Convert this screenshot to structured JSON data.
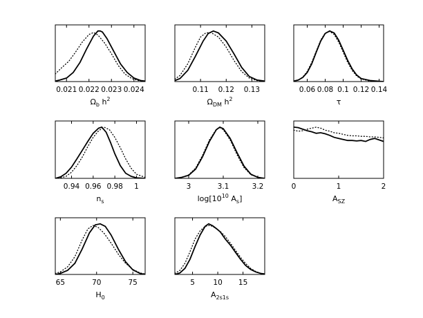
{
  "figure_colors": {
    "solid": "#000000",
    "dotted": "#000000",
    "frame": "#000000"
  },
  "chart_data": [
    {
      "type": "line",
      "xlabel": {
        "base": "Ω",
        "sub": "b",
        "rest": " h",
        "sup": "2"
      },
      "xlim": [
        0.0205,
        0.0245
      ],
      "ylim": [
        0,
        1.12
      ],
      "xticks": [
        {
          "value": 0.021,
          "label": "0.021"
        },
        {
          "value": 0.022,
          "label": "0.022"
        },
        {
          "value": 0.023,
          "label": "0.023"
        },
        {
          "value": 0.024,
          "label": "0.024"
        }
      ],
      "series": [
        {
          "style": "solid",
          "x": [
            0.0205,
            0.0207,
            0.021,
            0.0213,
            0.0216,
            0.0219,
            0.0222,
            0.0224,
            0.0225,
            0.0226,
            0.0228,
            0.0231,
            0.0234,
            0.0237,
            0.024,
            0.0243,
            0.0245
          ],
          "y": [
            0.01,
            0.03,
            0.07,
            0.18,
            0.38,
            0.65,
            0.9,
            1.0,
            1.0,
            0.98,
            0.85,
            0.6,
            0.35,
            0.18,
            0.07,
            0.02,
            0.01
          ]
        },
        {
          "style": "dotted",
          "x": [
            0.0205,
            0.0208,
            0.0211,
            0.0214,
            0.0217,
            0.022,
            0.0222,
            0.0224,
            0.0227,
            0.023,
            0.0233,
            0.0236,
            0.0239,
            0.0242,
            0.0245
          ],
          "y": [
            0.15,
            0.28,
            0.4,
            0.58,
            0.78,
            0.93,
            0.97,
            0.92,
            0.76,
            0.55,
            0.32,
            0.15,
            0.06,
            0.02,
            0.01
          ]
        }
      ]
    },
    {
      "type": "line",
      "xlabel": {
        "base": "Ω",
        "sub": "DM",
        "rest": " h",
        "sup": "2"
      },
      "xlim": [
        0.1,
        0.135
      ],
      "ylim": [
        0,
        1.12
      ],
      "xticks": [
        {
          "value": 0.11,
          "label": "0.11"
        },
        {
          "value": 0.12,
          "label": "0.12"
        },
        {
          "value": 0.13,
          "label": "0.13"
        }
      ],
      "series": [
        {
          "style": "solid",
          "x": [
            0.1,
            0.102,
            0.105,
            0.108,
            0.111,
            0.113,
            0.115,
            0.117,
            0.12,
            0.123,
            0.126,
            0.129,
            0.132,
            0.135
          ],
          "y": [
            0.02,
            0.06,
            0.22,
            0.5,
            0.8,
            0.95,
            1.0,
            0.96,
            0.8,
            0.55,
            0.28,
            0.1,
            0.03,
            0.01
          ]
        },
        {
          "style": "dotted",
          "x": [
            0.1,
            0.102,
            0.105,
            0.108,
            0.11,
            0.112,
            0.114,
            0.117,
            0.12,
            0.123,
            0.126,
            0.129,
            0.132,
            0.135
          ],
          "y": [
            0.05,
            0.12,
            0.35,
            0.68,
            0.88,
            0.96,
            0.97,
            0.88,
            0.68,
            0.42,
            0.2,
            0.07,
            0.02,
            0.01
          ]
        }
      ]
    },
    {
      "type": "line",
      "xlabel": {
        "base": "τ",
        "sub": "",
        "rest": "",
        "sup": ""
      },
      "xlim": [
        0.045,
        0.145
      ],
      "ylim": [
        0,
        1.12
      ],
      "xticks": [
        {
          "value": 0.06,
          "label": "0.06"
        },
        {
          "value": 0.08,
          "label": "0.08"
        },
        {
          "value": 0.1,
          "label": "0.1"
        },
        {
          "value": 0.12,
          "label": "0.12"
        },
        {
          "value": 0.14,
          "label": "0.14"
        }
      ],
      "series": [
        {
          "style": "solid",
          "x": [
            0.045,
            0.05,
            0.055,
            0.06,
            0.065,
            0.07,
            0.075,
            0.08,
            0.085,
            0.09,
            0.095,
            0.1,
            0.105,
            0.11,
            0.115,
            0.12,
            0.13,
            0.145
          ],
          "y": [
            0.01,
            0.03,
            0.08,
            0.18,
            0.35,
            0.58,
            0.8,
            0.95,
            1.0,
            0.96,
            0.82,
            0.62,
            0.42,
            0.25,
            0.13,
            0.06,
            0.02,
            0.0
          ]
        },
        {
          "style": "dotted",
          "x": [
            0.045,
            0.05,
            0.055,
            0.06,
            0.065,
            0.07,
            0.075,
            0.08,
            0.085,
            0.09,
            0.095,
            0.1,
            0.105,
            0.11,
            0.115,
            0.12,
            0.13,
            0.145
          ],
          "y": [
            0.01,
            0.03,
            0.09,
            0.2,
            0.38,
            0.6,
            0.82,
            0.96,
            0.99,
            0.93,
            0.78,
            0.58,
            0.38,
            0.22,
            0.11,
            0.05,
            0.01,
            0.0
          ]
        }
      ]
    },
    {
      "type": "line",
      "xlabel": {
        "base": "n",
        "sub": "s",
        "rest": "",
        "sup": ""
      },
      "xlim": [
        0.925,
        1.008
      ],
      "ylim": [
        0,
        1.12
      ],
      "xticks": [
        {
          "value": 0.94,
          "label": "0.94"
        },
        {
          "value": 0.96,
          "label": "0.96"
        },
        {
          "value": 0.98,
          "label": "0.98"
        },
        {
          "value": 1.0,
          "label": "1"
        }
      ],
      "series": [
        {
          "style": "solid",
          "x": [
            0.925,
            0.93,
            0.935,
            0.94,
            0.945,
            0.95,
            0.955,
            0.96,
            0.965,
            0.968,
            0.972,
            0.976,
            0.98,
            0.985,
            0.99,
            0.995,
            1.0,
            1.008
          ],
          "y": [
            0.0,
            0.03,
            0.1,
            0.22,
            0.38,
            0.55,
            0.72,
            0.88,
            0.98,
            1.0,
            0.9,
            0.7,
            0.48,
            0.25,
            0.1,
            0.04,
            0.01,
            0.0
          ]
        },
        {
          "style": "dotted",
          "x": [
            0.925,
            0.93,
            0.935,
            0.94,
            0.945,
            0.95,
            0.955,
            0.96,
            0.965,
            0.97,
            0.975,
            0.98,
            0.985,
            0.99,
            0.995,
            1.0,
            1.008
          ],
          "y": [
            0.0,
            0.01,
            0.04,
            0.12,
            0.25,
            0.42,
            0.62,
            0.8,
            0.93,
            1.0,
            0.95,
            0.8,
            0.6,
            0.38,
            0.2,
            0.08,
            0.02
          ]
        }
      ]
    },
    {
      "type": "line",
      "xlabel": {
        "base": "log[10",
        "sub": "",
        "rest": " A",
        "sup": "10",
        "sub2": "s",
        "tail": "]"
      },
      "xlim": [
        2.96,
        3.22
      ],
      "ylim": [
        0,
        1.12
      ],
      "xticks": [
        {
          "value": 3.0,
          "label": "3"
        },
        {
          "value": 3.1,
          "label": "3.1"
        },
        {
          "value": 3.2,
          "label": "3.2"
        }
      ],
      "series": [
        {
          "style": "solid",
          "x": [
            2.96,
            2.98,
            3.0,
            3.02,
            3.04,
            3.06,
            3.08,
            3.09,
            3.1,
            3.12,
            3.14,
            3.16,
            3.18,
            3.2,
            3.22
          ],
          "y": [
            0.0,
            0.02,
            0.06,
            0.18,
            0.42,
            0.72,
            0.95,
            1.0,
            0.97,
            0.78,
            0.5,
            0.24,
            0.08,
            0.02,
            0.0
          ]
        },
        {
          "style": "dotted",
          "x": [
            2.96,
            2.98,
            3.0,
            3.02,
            3.04,
            3.06,
            3.08,
            3.09,
            3.1,
            3.12,
            3.14,
            3.16,
            3.18,
            3.2,
            3.22
          ],
          "y": [
            0.0,
            0.02,
            0.07,
            0.2,
            0.45,
            0.75,
            0.96,
            0.99,
            0.95,
            0.75,
            0.46,
            0.21,
            0.07,
            0.02,
            0.0
          ]
        }
      ]
    },
    {
      "type": "line",
      "xlabel": {
        "base": "A",
        "sub": "SZ",
        "rest": "",
        "sup": ""
      },
      "xlim": [
        0,
        2
      ],
      "ylim": [
        0,
        1.12
      ],
      "xticks": [
        {
          "value": 0,
          "label": "0"
        },
        {
          "value": 1,
          "label": "1"
        },
        {
          "value": 2,
          "label": "2"
        }
      ],
      "series": [
        {
          "style": "solid",
          "x": [
            0.0,
            0.1,
            0.2,
            0.3,
            0.4,
            0.5,
            0.6,
            0.7,
            0.8,
            0.9,
            1.0,
            1.1,
            1.2,
            1.3,
            1.4,
            1.5,
            1.6,
            1.7,
            1.8,
            1.9,
            2.0
          ],
          "y": [
            1.0,
            0.99,
            0.96,
            0.93,
            0.91,
            0.88,
            0.89,
            0.87,
            0.84,
            0.8,
            0.78,
            0.76,
            0.74,
            0.74,
            0.73,
            0.74,
            0.72,
            0.76,
            0.78,
            0.75,
            0.72
          ]
        },
        {
          "style": "dotted",
          "x": [
            0.0,
            0.1,
            0.2,
            0.3,
            0.4,
            0.5,
            0.6,
            0.7,
            0.8,
            0.9,
            1.0,
            1.1,
            1.2,
            1.3,
            1.4,
            1.5,
            1.6,
            1.7,
            1.8,
            1.9,
            2.0
          ],
          "y": [
            0.94,
            0.92,
            0.93,
            0.96,
            0.98,
            1.0,
            0.98,
            0.94,
            0.92,
            0.89,
            0.88,
            0.86,
            0.84,
            0.83,
            0.83,
            0.82,
            0.82,
            0.81,
            0.81,
            0.8,
            0.79
          ]
        }
      ]
    },
    {
      "type": "line",
      "xlabel": {
        "base": "H",
        "sub": "0",
        "rest": "",
        "sup": ""
      },
      "xlim": [
        64.3,
        76.7
      ],
      "ylim": [
        0,
        1.12
      ],
      "xticks": [
        {
          "value": 65,
          "label": "65"
        },
        {
          "value": 70,
          "label": "70"
        },
        {
          "value": 75,
          "label": "75"
        }
      ],
      "series": [
        {
          "style": "solid",
          "x": [
            64.3,
            65.0,
            66.0,
            67.0,
            68.0,
            69.0,
            69.8,
            70.5,
            71.2,
            72.0,
            73.0,
            74.0,
            75.0,
            76.0,
            76.7
          ],
          "y": [
            0.0,
            0.02,
            0.08,
            0.22,
            0.5,
            0.82,
            0.98,
            1.0,
            0.95,
            0.78,
            0.5,
            0.25,
            0.09,
            0.02,
            0.0
          ]
        },
        {
          "style": "dotted",
          "x": [
            64.3,
            65.0,
            66.0,
            67.0,
            68.0,
            68.8,
            69.5,
            70.2,
            71.0,
            72.0,
            73.0,
            74.0,
            75.0,
            76.0,
            76.7
          ],
          "y": [
            0.02,
            0.05,
            0.15,
            0.35,
            0.68,
            0.9,
            0.97,
            0.93,
            0.82,
            0.62,
            0.4,
            0.22,
            0.1,
            0.03,
            0.01
          ]
        }
      ]
    },
    {
      "type": "line",
      "xlabel": {
        "base": "A",
        "sub": "2s1s",
        "rest": "",
        "sup": ""
      },
      "xlim": [
        1.5,
        19.3
      ],
      "ylim": [
        0,
        1.12
      ],
      "xticks": [
        {
          "value": 5,
          "label": "5"
        },
        {
          "value": 10,
          "label": "10"
        },
        {
          "value": 15,
          "label": "15"
        }
      ],
      "series": [
        {
          "style": "solid",
          "x": [
            1.5,
            2.5,
            3.5,
            4.5,
            5.5,
            6.5,
            7.5,
            8.2,
            9.0,
            9.8,
            10.5,
            11.5,
            12.5,
            13.5,
            14.5,
            15.5,
            16.5,
            17.5,
            18.5,
            19.3
          ],
          "y": [
            0.0,
            0.03,
            0.12,
            0.3,
            0.55,
            0.78,
            0.95,
            1.0,
            0.96,
            0.9,
            0.84,
            0.7,
            0.58,
            0.44,
            0.3,
            0.18,
            0.1,
            0.05,
            0.02,
            0.01
          ]
        },
        {
          "style": "dotted",
          "x": [
            1.5,
            2.5,
            3.5,
            4.5,
            5.5,
            6.5,
            7.5,
            8.5,
            9.5,
            10.5,
            11.5,
            12.5,
            13.5,
            14.5,
            15.5,
            16.5,
            17.5,
            18.5,
            19.3
          ],
          "y": [
            0.02,
            0.08,
            0.22,
            0.45,
            0.7,
            0.86,
            0.95,
            0.97,
            0.92,
            0.85,
            0.75,
            0.62,
            0.48,
            0.34,
            0.22,
            0.12,
            0.06,
            0.02,
            0.01
          ]
        }
      ]
    }
  ]
}
